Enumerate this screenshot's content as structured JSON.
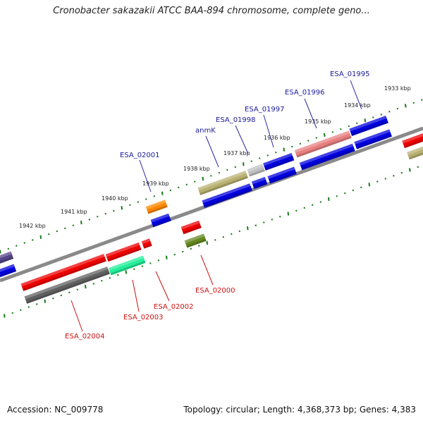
{
  "title": "Cronobacter sakazakii ATCC BAA-894 chromosome, complete geno...",
  "footer": {
    "accession": "Accession: NC_009778",
    "summary": "Topology: circular; Length: 4,368,373 bp; Genes: 4,383"
  },
  "scale_labels": [
    "1933 kbp",
    "1934 kbp",
    "1935 kbp",
    "1936 kbp",
    "1937 kbp",
    "1938 kbp",
    "1939 kbp",
    "1940 kbp",
    "1941 kbp",
    "1942 kbp"
  ],
  "top_gene_labels": [
    "ESA_01995",
    "ESA_01996",
    "ESA_01997",
    "ESA_01998",
    "anmK",
    "ESA_02001"
  ],
  "bottom_gene_labels": [
    "ESA_02000",
    "ESA_02002",
    "ESA_02003",
    "ESA_02004"
  ],
  "colors": {
    "forward_cds": "#0000dd",
    "backbone": "#808080",
    "tick_green": "#1a7a1a",
    "top_label": "#1a1a9a",
    "bottom_label": "#cc1111",
    "gene_red": "#ee0000",
    "gene_olive": "#b8b070",
    "gene_pink": "#e88080",
    "gene_grey": "#c0c0c0",
    "gene_orange": "#ff8800",
    "gene_teal": "#22ee99",
    "gene_darkgrey": "#606060",
    "gene_darkgreen": "#668822",
    "gene_purple": "#554488"
  }
}
